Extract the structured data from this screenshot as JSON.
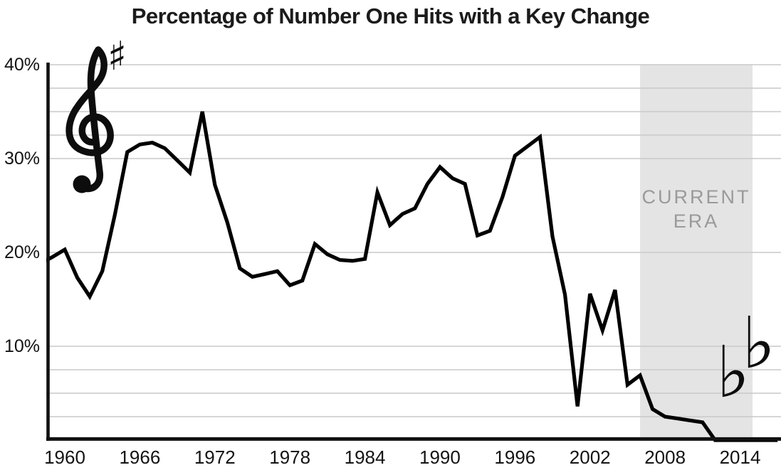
{
  "title": "Percentage of Number One Hits with a Key Change",
  "icons": {
    "treble_clef": "treble-clef",
    "sharp_symbol": "♯",
    "flat_symbol": "♭"
  },
  "colors": {
    "background": "#ffffff",
    "line": "#000000",
    "gridline": "#c9c9c9",
    "axis": "#111111",
    "band": "#e4e4e4",
    "band_label": "#9a9a9a",
    "text": "#141414"
  },
  "chart_data": {
    "type": "line",
    "title": "Percentage of Number One Hits with a Key Change",
    "xlabel": "",
    "ylabel": "",
    "xlim": [
      1958.5,
      2017.3
    ],
    "ylim": [
      0,
      42
    ],
    "grid": "staff-style horizontal gridlines only",
    "legend": "none",
    "x": [
      1958,
      1959,
      1960,
      1961,
      1962,
      1963,
      1964,
      1965,
      1966,
      1967,
      1968,
      1969,
      1970,
      1971,
      1972,
      1973,
      1974,
      1975,
      1976,
      1977,
      1978,
      1979,
      1980,
      1981,
      1982,
      1983,
      1984,
      1985,
      1986,
      1987,
      1988,
      1989,
      1990,
      1991,
      1992,
      1993,
      1994,
      1995,
      1996,
      1997,
      1998,
      1999,
      2000,
      2001,
      2002,
      2003,
      2004,
      2005,
      2006,
      2007,
      2008,
      2009,
      2010,
      2011,
      2012,
      2013,
      2014,
      2015,
      2016,
      2017
    ],
    "values": [
      18.8,
      19.5,
      20.3,
      17.3,
      15.3,
      18.0,
      24.0,
      30.7,
      31.5,
      31.7,
      31.1,
      29.8,
      28.5,
      35.0,
      27.2,
      23.2,
      18.3,
      17.4,
      17.7,
      18.0,
      16.5,
      17.0,
      20.9,
      19.8,
      19.2,
      19.1,
      19.3,
      26.4,
      22.9,
      24.1,
      24.7,
      27.3,
      29.1,
      27.9,
      27.3,
      21.8,
      22.3,
      25.9,
      30.3,
      31.3,
      32.3,
      21.7,
      15.5,
      3.6,
      15.6,
      11.7,
      16.0,
      5.9,
      6.9,
      3.3,
      2.5,
      2.3,
      2.1,
      1.9,
      0,
      0,
      0,
      0,
      0,
      0
    ],
    "yticks": [
      {
        "pct": 40,
        "label": "40%"
      },
      {
        "pct": 30,
        "label": "30%"
      },
      {
        "pct": 20,
        "label": "20%"
      },
      {
        "pct": 10,
        "label": "10%"
      }
    ],
    "xticks": [
      {
        "year": 1960,
        "label": "1960"
      },
      {
        "year": 1966,
        "label": "1966"
      },
      {
        "year": 1972,
        "label": "1972"
      },
      {
        "year": 1978,
        "label": "1978"
      },
      {
        "year": 1984,
        "label": "1984"
      },
      {
        "year": 1990,
        "label": "1990"
      },
      {
        "year": 1996,
        "label": "1996"
      },
      {
        "year": 2002,
        "label": "2002"
      },
      {
        "year": 2008,
        "label": "2008"
      },
      {
        "year": 2014,
        "label": "2014"
      }
    ],
    "gridlines_pct": [
      40,
      37.5,
      35,
      32.5,
      30,
      20,
      10,
      7.5,
      5,
      2.5
    ],
    "shaded_region": {
      "start_year": 2006,
      "end_year": 2015,
      "label_lines": [
        "CURRENT",
        "ERA"
      ]
    }
  }
}
